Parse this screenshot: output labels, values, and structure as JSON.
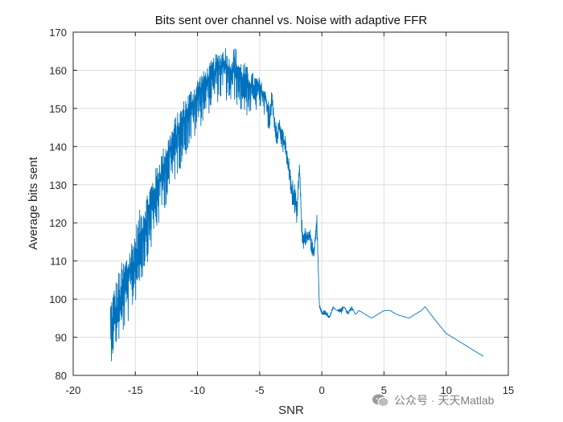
{
  "chart_data": {
    "type": "line",
    "title": "Bits sent over channel vs. Noise with adaptive FFR",
    "xlabel": "SNR",
    "ylabel": "Average bits sent",
    "xlim": [
      -20,
      15
    ],
    "ylim": [
      80,
      170
    ],
    "xticks": [
      -20,
      -15,
      -10,
      -5,
      0,
      5,
      10,
      15
    ],
    "yticks": [
      80,
      90,
      100,
      110,
      120,
      130,
      140,
      150,
      160,
      170
    ],
    "grid": true,
    "line_color": "#0072BD",
    "series": [
      {
        "name": "",
        "x": [
          -17.0,
          -16.6,
          -16.2,
          -15.8,
          -15.4,
          -15.0,
          -14.6,
          -14.2,
          -13.8,
          -13.4,
          -13.0,
          -12.6,
          -12.2,
          -11.8,
          -11.4,
          -11.0,
          -10.6,
          -10.2,
          -9.8,
          -9.4,
          -9.0,
          -8.6,
          -8.2,
          -7.8,
          -7.4,
          -7.0,
          -6.6,
          -6.2,
          -5.8,
          -5.4,
          -5.0,
          -4.6,
          -4.2,
          -4.0,
          -3.8,
          -3.6,
          -3.4,
          -3.2,
          -3.0,
          -2.8,
          -2.6,
          -2.4,
          -2.2,
          -2.0,
          -1.8,
          -1.6,
          -1.5,
          -1.4,
          -1.2,
          -1.0,
          -0.8,
          -0.6,
          -0.4,
          -0.2,
          0.0,
          0.3,
          0.6,
          0.9,
          1.2,
          1.5,
          1.8,
          2.1,
          2.4,
          2.7,
          3.0,
          3.5,
          4.0,
          4.5,
          5.0,
          5.5,
          6.0,
          7.0,
          7.5,
          8.0,
          8.3,
          9.0,
          10.0,
          11.0,
          13.0
        ],
        "y": [
          92,
          96,
          99,
          103,
          107,
          111,
          116,
          120,
          124,
          128,
          132,
          136,
          139,
          142,
          145,
          148,
          150,
          152,
          155,
          157,
          158,
          160,
          161,
          162,
          160,
          160,
          158,
          157,
          156,
          155,
          155,
          153,
          148,
          152,
          145,
          143,
          146,
          142,
          141,
          137,
          133,
          128,
          126,
          122,
          135,
          118,
          114,
          117,
          116,
          117,
          113,
          112,
          122,
          98,
          96,
          96,
          95,
          98,
          97,
          97,
          98,
          96,
          98,
          96,
          97,
          96,
          95,
          96,
          97,
          97,
          96,
          95,
          96,
          97,
          98,
          95,
          91,
          89,
          85
        ],
        "upper": [
          101,
          105,
          109,
          112,
          115,
          119,
          124,
          127,
          131,
          134,
          138,
          141,
          144,
          148,
          150,
          153,
          155,
          157,
          159,
          160,
          162,
          164,
          165,
          167,
          163,
          167,
          163,
          162,
          160,
          159,
          158,
          155,
          153,
          155,
          148,
          146,
          147,
          145,
          144,
          140,
          136,
          132,
          130,
          126,
          136,
          121,
          117,
          119,
          118,
          119,
          116,
          114,
          122,
          99,
          97,
          97,
          96,
          98,
          97,
          98,
          98,
          97,
          98,
          96,
          97,
          96,
          95,
          96,
          97,
          97,
          96,
          95,
          96,
          97,
          98,
          95,
          91,
          89,
          85
        ],
        "lower": [
          83,
          87,
          89,
          92,
          95,
          99,
          103,
          108,
          112,
          116,
          120,
          124,
          127,
          131,
          134,
          137,
          140,
          142,
          145,
          147,
          149,
          151,
          152,
          152,
          150,
          152,
          149,
          148,
          148,
          149,
          150,
          147,
          144,
          150,
          142,
          140,
          143,
          139,
          138,
          134,
          130,
          125,
          123,
          119,
          134,
          115,
          112,
          114,
          114,
          115,
          111,
          110,
          118,
          98,
          96,
          96,
          95,
          97,
          97,
          96,
          97,
          96,
          97,
          96,
          97,
          96,
          95,
          96,
          97,
          97,
          96,
          95,
          96,
          97,
          98,
          95,
          91,
          89,
          85
        ]
      }
    ]
  },
  "watermark": {
    "icon": "wechat-icon",
    "text": "公众号 · 天天Matlab"
  }
}
